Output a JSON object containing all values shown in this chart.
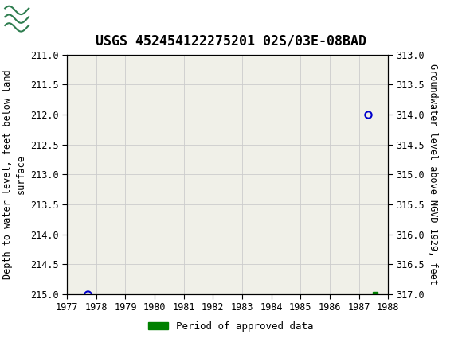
{
  "title": "USGS 452454122275201 02S/03E-08BAD",
  "ylabel_left": "Depth to water level, feet below land\nsurface",
  "ylabel_right": "Groundwater level above NGVD 1929, feet",
  "xlim": [
    1977,
    1988
  ],
  "ylim_left": [
    211.0,
    215.0
  ],
  "ylim_right": [
    317.0,
    313.0
  ],
  "xticks": [
    1977,
    1978,
    1979,
    1980,
    1981,
    1982,
    1983,
    1984,
    1985,
    1986,
    1987,
    1988
  ],
  "yticks_left": [
    211.0,
    211.5,
    212.0,
    212.5,
    213.0,
    213.5,
    214.0,
    214.5,
    215.0
  ],
  "yticks_right": [
    317.0,
    316.5,
    316.0,
    315.5,
    315.0,
    314.5,
    314.0,
    313.5,
    313.0
  ],
  "open_circle_points": [
    [
      1977.7,
      215.0
    ],
    [
      1987.3,
      212.0
    ]
  ],
  "approved_square_points": [
    [
      1987.55,
      215.0
    ]
  ],
  "legend_label": "Period of approved data",
  "legend_color": "#008000",
  "header_bg_color": "#2e7d4f",
  "plot_bg_color": "#f0f0e8",
  "grid_color": "#cccccc",
  "title_fontsize": 12,
  "axis_label_fontsize": 8.5,
  "tick_fontsize": 8.5,
  "marker_circle_color": "#0000cc",
  "marker_circle_size": 6
}
